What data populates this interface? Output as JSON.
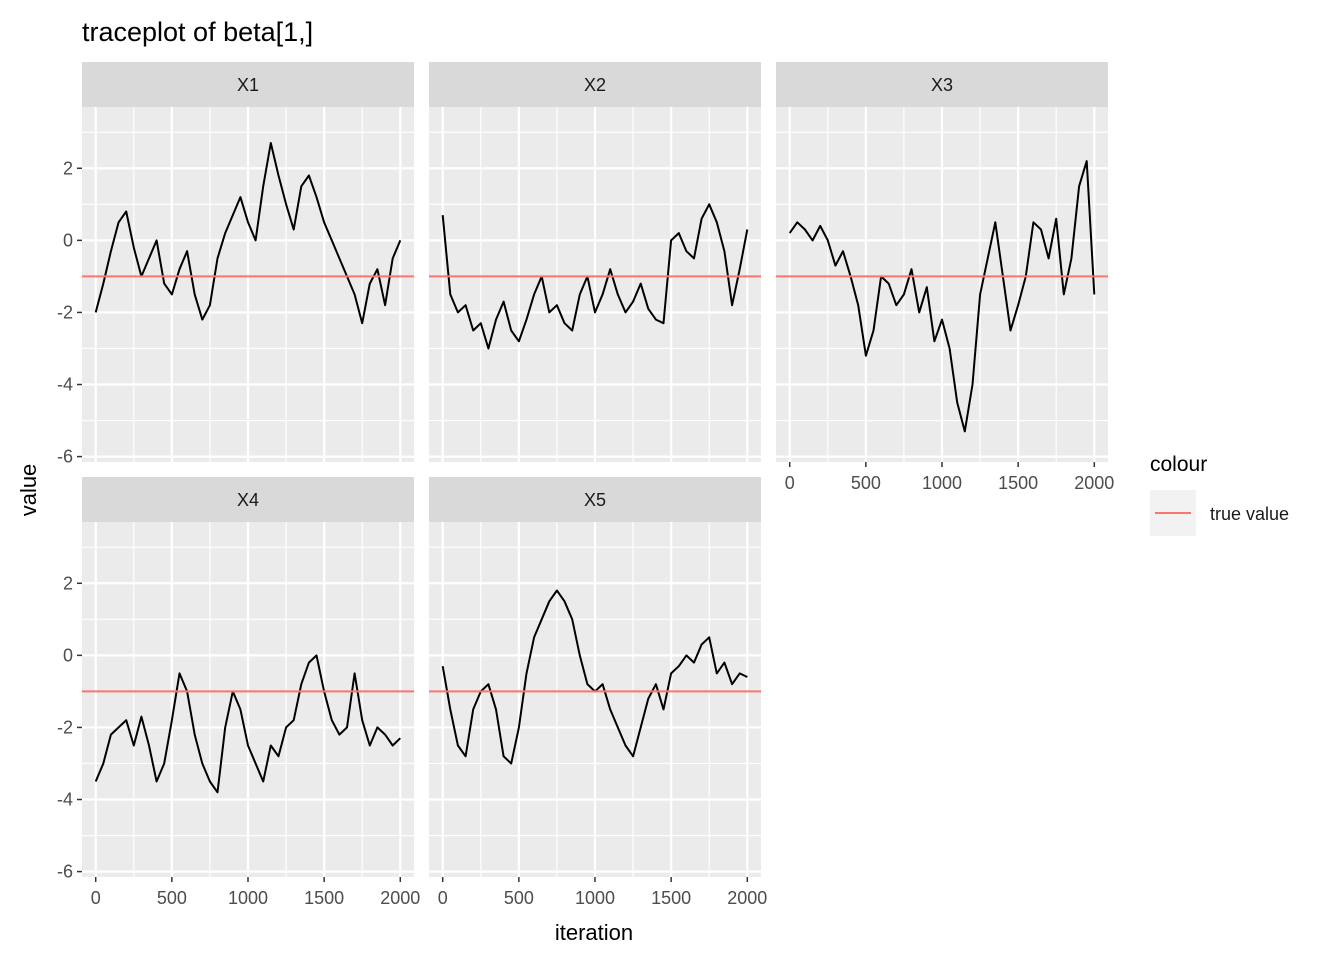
{
  "chart_data": {
    "type": "line",
    "title": "traceplot of beta[1,]",
    "xlabel": "iteration",
    "ylabel": "value",
    "xlim": [
      0,
      2000
    ],
    "ylim": [
      -6,
      3
    ],
    "x_ticks": [
      0,
      500,
      1000,
      1500,
      2000
    ],
    "y_ticks": [
      -6,
      -4,
      -2,
      0,
      2
    ],
    "grid": true,
    "legend": {
      "title": "colour",
      "position": "right",
      "entries": [
        {
          "label": "true value",
          "color": "#F8766D"
        }
      ]
    },
    "true_value": -1,
    "series_color": "#000000",
    "reference_color": "#F8766D",
    "panel_background": "#EBEBEB",
    "strip_background": "#D9D9D9",
    "panels": [
      {
        "name": "X1",
        "x": [
          0,
          50,
          100,
          150,
          200,
          250,
          300,
          350,
          400,
          450,
          500,
          550,
          600,
          650,
          700,
          750,
          800,
          850,
          900,
          950,
          1000,
          1050,
          1100,
          1150,
          1200,
          1250,
          1300,
          1350,
          1400,
          1450,
          1500,
          1550,
          1600,
          1650,
          1700,
          1750,
          1800,
          1850,
          1900,
          1950,
          2000
        ],
        "y": [
          -2.0,
          -1.2,
          -0.3,
          0.5,
          0.8,
          -0.2,
          -1.0,
          -0.5,
          0.0,
          -1.2,
          -1.5,
          -0.8,
          -0.3,
          -1.5,
          -2.2,
          -1.8,
          -0.5,
          0.2,
          0.7,
          1.2,
          0.5,
          0.0,
          1.5,
          2.7,
          1.8,
          1.0,
          0.3,
          1.5,
          1.8,
          1.2,
          0.5,
          0.0,
          -0.5,
          -1.0,
          -1.5,
          -2.3,
          -1.2,
          -0.8,
          -1.8,
          -0.5,
          0.0
        ]
      },
      {
        "name": "X2",
        "x": [
          0,
          50,
          100,
          150,
          200,
          250,
          300,
          350,
          400,
          450,
          500,
          550,
          600,
          650,
          700,
          750,
          800,
          850,
          900,
          950,
          1000,
          1050,
          1100,
          1150,
          1200,
          1250,
          1300,
          1350,
          1400,
          1450,
          1500,
          1550,
          1600,
          1650,
          1700,
          1750,
          1800,
          1850,
          1900,
          1950,
          2000
        ],
        "y": [
          0.7,
          -1.5,
          -2.0,
          -1.8,
          -2.5,
          -2.3,
          -3.0,
          -2.2,
          -1.7,
          -2.5,
          -2.8,
          -2.2,
          -1.5,
          -1.0,
          -2.0,
          -1.8,
          -2.3,
          -2.5,
          -1.5,
          -1.0,
          -2.0,
          -1.5,
          -0.8,
          -1.5,
          -2.0,
          -1.7,
          -1.2,
          -1.9,
          -2.2,
          -2.3,
          0.0,
          0.2,
          -0.3,
          -0.5,
          0.6,
          1.0,
          0.5,
          -0.3,
          -1.8,
          -0.8,
          0.3
        ]
      },
      {
        "name": "X3",
        "x": [
          0,
          50,
          100,
          150,
          200,
          250,
          300,
          350,
          400,
          450,
          500,
          550,
          600,
          650,
          700,
          750,
          800,
          850,
          900,
          950,
          1000,
          1050,
          1100,
          1150,
          1200,
          1250,
          1300,
          1350,
          1400,
          1450,
          1500,
          1550,
          1600,
          1650,
          1700,
          1750,
          1800,
          1850,
          1900,
          1950,
          2000
        ],
        "y": [
          0.2,
          0.5,
          0.3,
          0.0,
          0.4,
          0.0,
          -0.7,
          -0.3,
          -1.0,
          -1.8,
          -3.2,
          -2.5,
          -1.0,
          -1.2,
          -1.8,
          -1.5,
          -0.8,
          -2.0,
          -1.3,
          -2.8,
          -2.2,
          -3.0,
          -4.5,
          -5.3,
          -4.0,
          -1.5,
          -0.5,
          0.5,
          -1.0,
          -2.5,
          -1.8,
          -1.0,
          0.5,
          0.3,
          -0.5,
          0.6,
          -1.5,
          -0.5,
          1.5,
          2.2,
          -1.5
        ]
      },
      {
        "name": "X4",
        "x": [
          0,
          50,
          100,
          150,
          200,
          250,
          300,
          350,
          400,
          450,
          500,
          550,
          600,
          650,
          700,
          750,
          800,
          850,
          900,
          950,
          1000,
          1050,
          1100,
          1150,
          1200,
          1250,
          1300,
          1350,
          1400,
          1450,
          1500,
          1550,
          1600,
          1650,
          1700,
          1750,
          1800,
          1850,
          1900,
          1950,
          2000
        ],
        "y": [
          -3.5,
          -3.0,
          -2.2,
          -2.0,
          -1.8,
          -2.5,
          -1.7,
          -2.5,
          -3.5,
          -3.0,
          -1.8,
          -0.5,
          -1.0,
          -2.2,
          -3.0,
          -3.5,
          -3.8,
          -2.0,
          -1.0,
          -1.5,
          -2.5,
          -3.0,
          -3.5,
          -2.5,
          -2.8,
          -2.0,
          -1.8,
          -0.8,
          -0.2,
          0.0,
          -1.0,
          -1.8,
          -2.2,
          -2.0,
          -0.5,
          -1.8,
          -2.5,
          -2.0,
          -2.2,
          -2.5,
          -2.3
        ]
      },
      {
        "name": "X5",
        "x": [
          0,
          50,
          100,
          150,
          200,
          250,
          300,
          350,
          400,
          450,
          500,
          550,
          600,
          650,
          700,
          750,
          800,
          850,
          900,
          950,
          1000,
          1050,
          1100,
          1150,
          1200,
          1250,
          1300,
          1350,
          1400,
          1450,
          1500,
          1550,
          1600,
          1650,
          1700,
          1750,
          1800,
          1850,
          1900,
          1950,
          2000
        ],
        "y": [
          -0.3,
          -1.5,
          -2.5,
          -2.8,
          -1.5,
          -1.0,
          -0.8,
          -1.5,
          -2.8,
          -3.0,
          -2.0,
          -0.5,
          0.5,
          1.0,
          1.5,
          1.8,
          1.5,
          1.0,
          0.0,
          -0.8,
          -1.0,
          -0.8,
          -1.5,
          -2.0,
          -2.5,
          -2.8,
          -2.0,
          -1.2,
          -0.8,
          -1.5,
          -0.5,
          -0.3,
          0.0,
          -0.2,
          0.3,
          0.5,
          -0.5,
          -0.2,
          -0.8,
          -0.5,
          -0.6
        ]
      }
    ]
  }
}
